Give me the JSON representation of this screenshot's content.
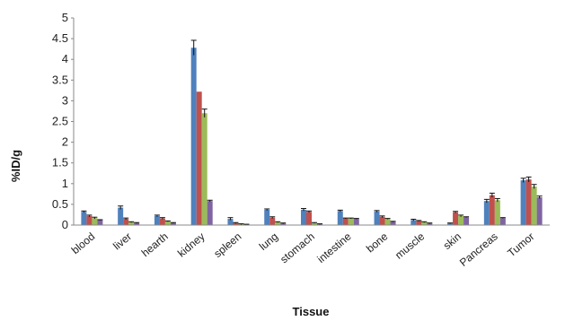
{
  "chart_data": {
    "type": "bar",
    "title": "",
    "xlabel": "Tissue",
    "ylabel": "%ID/g",
    "ylim": [
      0,
      5
    ],
    "yticks": [
      "0",
      "0.5",
      "1",
      "1.5",
      "2",
      "2.5",
      "3",
      "3.5",
      "4",
      "4.5",
      "5"
    ],
    "grid": false,
    "legend": "none",
    "categories": [
      "blood",
      "liver",
      "hearth",
      "kidney",
      "spleen",
      "lung",
      "stomach",
      "intestine",
      "bone",
      "muscle",
      "skin",
      "Pancreas",
      "Tumor"
    ],
    "series": [
      {
        "color": "#4f81bd",
        "values": [
          0.32,
          0.42,
          0.22,
          4.28,
          0.15,
          0.37,
          0.37,
          0.34,
          0.33,
          0.12,
          0.04,
          0.58,
          1.08
        ],
        "errors": [
          0.02,
          0.04,
          0.02,
          0.18,
          0.03,
          0.02,
          0.03,
          0.02,
          0.02,
          0.02,
          0.01,
          0.04,
          0.05
        ]
      },
      {
        "color": "#c0504d",
        "values": [
          0.22,
          0.15,
          0.16,
          3.22,
          0.05,
          0.18,
          0.32,
          0.16,
          0.2,
          0.1,
          0.31,
          0.72,
          1.1
        ],
        "errors": [
          0.02,
          0.02,
          0.02,
          0.0,
          0.01,
          0.02,
          0.02,
          0.01,
          0.02,
          0.01,
          0.02,
          0.05,
          0.06
        ]
      },
      {
        "color": "#9bbb59",
        "values": [
          0.17,
          0.07,
          0.09,
          2.7,
          0.02,
          0.07,
          0.05,
          0.16,
          0.15,
          0.07,
          0.22,
          0.6,
          0.93
        ],
        "errors": [
          0.02,
          0.01,
          0.01,
          0.1,
          0.01,
          0.01,
          0.01,
          0.01,
          0.01,
          0.01,
          0.02,
          0.04,
          0.05
        ]
      },
      {
        "color": "#8064a2",
        "values": [
          0.12,
          0.05,
          0.05,
          0.58,
          0.01,
          0.04,
          0.02,
          0.15,
          0.08,
          0.04,
          0.19,
          0.17,
          0.67
        ],
        "errors": [
          0.01,
          0.01,
          0.01,
          0.02,
          0.01,
          0.01,
          0.01,
          0.01,
          0.01,
          0.01,
          0.01,
          0.01,
          0.03
        ]
      }
    ]
  }
}
